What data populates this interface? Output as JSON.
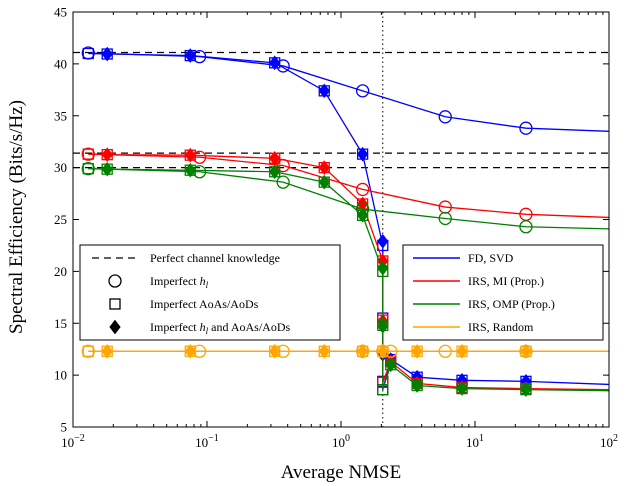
{
  "chart_data": {
    "type": "line",
    "title": "",
    "xlabel": "Average NMSE",
    "ylabel": "Spectral Efficiency (Bits/s/Hz)",
    "x_scale": "log",
    "xlim": [
      0.01,
      100
    ],
    "ylim": [
      5,
      45
    ],
    "x_ticks": [
      {
        "value": 0.01,
        "base": "10",
        "exp": "−2"
      },
      {
        "value": 0.1,
        "base": "10",
        "exp": "−1"
      },
      {
        "value": 1,
        "base": "10",
        "exp": "0"
      },
      {
        "value": 10,
        "base": "10",
        "exp": "1"
      },
      {
        "value": 100,
        "base": "10",
        "exp": "2"
      }
    ],
    "y_ticks": [
      "5",
      "10",
      "15",
      "20",
      "25",
      "30",
      "35",
      "40",
      "45"
    ],
    "vertical_line_x": 2.05,
    "grid": false,
    "colors": {
      "FD": "#0000ff",
      "MI": "#ff0000",
      "OMP": "#008000",
      "Random": "#ffa500",
      "perfect": "#000000"
    },
    "perfect_levels": [
      41.1,
      31.4,
      30.0
    ],
    "series": [
      {
        "name": "FD, SVD",
        "color": "#0000ff",
        "imperfect_hl": [
          [
            0.013,
            41.05
          ],
          [
            0.088,
            40.7
          ],
          [
            0.37,
            39.8
          ],
          [
            1.45,
            37.4
          ],
          [
            6.0,
            34.9
          ],
          [
            24,
            33.8
          ],
          [
            100,
            33.5
          ]
        ],
        "imperfect_aoa": [
          [
            0.013,
            41.0
          ],
          [
            0.018,
            40.95
          ],
          [
            0.075,
            40.8
          ],
          [
            0.32,
            40.1
          ],
          [
            0.75,
            37.4
          ],
          [
            1.45,
            31.3
          ],
          [
            2.05,
            22.5
          ],
          [
            2.05,
            15.5
          ],
          [
            2.05,
            9.4
          ],
          [
            2.05,
            8.6
          ],
          [
            2.35,
            11.5
          ],
          [
            3.7,
            9.8
          ],
          [
            8.0,
            9.5
          ],
          [
            24,
            9.4
          ],
          [
            100,
            9.1
          ]
        ],
        "imperfect_both": [
          [
            0.018,
            40.95
          ],
          [
            0.075,
            40.8
          ],
          [
            0.32,
            40.1
          ],
          [
            0.75,
            37.4
          ],
          [
            1.45,
            31.3
          ],
          [
            2.05,
            22.9
          ],
          [
            2.05,
            12.0
          ],
          [
            2.35,
            11.5
          ],
          [
            3.7,
            9.8
          ],
          [
            8.0,
            9.5
          ],
          [
            24,
            9.4
          ]
        ]
      },
      {
        "name": "IRS, MI (Prop.)",
        "color": "#ff0000",
        "imperfect_hl": [
          [
            0.013,
            31.3
          ],
          [
            0.088,
            31.0
          ],
          [
            0.37,
            30.2
          ],
          [
            1.45,
            27.9
          ],
          [
            6.0,
            26.2
          ],
          [
            24,
            25.5
          ],
          [
            100,
            25.2
          ]
        ],
        "imperfect_aoa": [
          [
            0.013,
            31.3
          ],
          [
            0.018,
            31.25
          ],
          [
            0.075,
            31.2
          ],
          [
            0.32,
            30.9
          ],
          [
            0.75,
            30.0
          ],
          [
            1.45,
            26.5
          ],
          [
            2.05,
            21.0
          ],
          [
            2.05,
            15.3
          ],
          [
            2.05,
            9.3
          ],
          [
            2.35,
            11.3
          ],
          [
            3.7,
            9.2
          ],
          [
            8.0,
            8.8
          ],
          [
            24,
            8.7
          ],
          [
            100,
            8.6
          ]
        ],
        "imperfect_both": [
          [
            0.018,
            31.25
          ],
          [
            0.075,
            31.2
          ],
          [
            0.32,
            30.9
          ],
          [
            0.75,
            30.0
          ],
          [
            1.45,
            26.5
          ],
          [
            2.05,
            21.0
          ],
          [
            2.05,
            15.2
          ],
          [
            2.35,
            11.3
          ],
          [
            3.7,
            9.2
          ],
          [
            8.0,
            8.8
          ],
          [
            24,
            8.7
          ]
        ]
      },
      {
        "name": "IRS, OMP (Prop.)",
        "color": "#008000",
        "imperfect_hl": [
          [
            0.013,
            29.9
          ],
          [
            0.088,
            29.6
          ],
          [
            0.37,
            28.6
          ],
          [
            1.45,
            26.0
          ],
          [
            6.0,
            25.1
          ],
          [
            24,
            24.3
          ],
          [
            100,
            24.1
          ]
        ],
        "imperfect_aoa": [
          [
            0.013,
            29.9
          ],
          [
            0.018,
            29.85
          ],
          [
            0.075,
            29.75
          ],
          [
            0.32,
            29.6
          ],
          [
            0.75,
            28.6
          ],
          [
            1.45,
            25.4
          ],
          [
            2.05,
            20.0
          ],
          [
            2.05,
            14.8
          ],
          [
            2.05,
            8.6
          ],
          [
            2.35,
            11.0
          ],
          [
            3.7,
            9.0
          ],
          [
            8.0,
            8.7
          ],
          [
            24,
            8.6
          ],
          [
            100,
            8.5
          ]
        ],
        "imperfect_both": [
          [
            0.018,
            29.85
          ],
          [
            0.075,
            29.75
          ],
          [
            0.32,
            29.6
          ],
          [
            0.75,
            28.6
          ],
          [
            1.45,
            25.4
          ],
          [
            2.05,
            20.3
          ],
          [
            2.05,
            14.7
          ],
          [
            2.35,
            11.0
          ],
          [
            3.7,
            9.0
          ],
          [
            8.0,
            8.7
          ],
          [
            24,
            8.6
          ]
        ]
      },
      {
        "name": "IRS, Random",
        "color": "#ffa500",
        "imperfect_hl": [
          [
            0.013,
            12.3
          ],
          [
            0.088,
            12.3
          ],
          [
            0.37,
            12.3
          ],
          [
            1.45,
            12.3
          ],
          [
            2.05,
            12.3
          ],
          [
            2.35,
            12.3
          ],
          [
            6.0,
            12.3
          ],
          [
            24,
            12.3
          ],
          [
            100,
            12.3
          ]
        ],
        "imperfect_aoa": [
          [
            0.013,
            12.3
          ],
          [
            0.018,
            12.3
          ],
          [
            0.075,
            12.3
          ],
          [
            0.32,
            12.3
          ],
          [
            0.75,
            12.3
          ],
          [
            1.45,
            12.3
          ],
          [
            2.05,
            12.3
          ],
          [
            3.7,
            12.3
          ],
          [
            8.0,
            12.3
          ],
          [
            24,
            12.3
          ],
          [
            100,
            12.3
          ]
        ],
        "imperfect_both": [
          [
            0.018,
            12.3
          ],
          [
            0.075,
            12.3
          ],
          [
            0.32,
            12.3
          ],
          [
            0.75,
            12.3
          ],
          [
            1.45,
            12.3
          ],
          [
            2.05,
            12.3
          ],
          [
            3.7,
            12.3
          ],
          [
            8.0,
            12.3
          ],
          [
            24,
            12.3
          ]
        ]
      }
    ],
    "legend_left": {
      "placement": "lower-left",
      "entries": [
        {
          "label": "Perfect channel knowledge",
          "sub": "",
          "rest": "",
          "marker": "dashed-line"
        },
        {
          "label": "Imperfect ",
          "sub": "l",
          "rest": "",
          "marker": "circle"
        },
        {
          "label": "Imperfect AoAs/AoDs",
          "sub": "",
          "rest": "",
          "marker": "square"
        },
        {
          "label": "Imperfect ",
          "sub": "l",
          "rest": " and AoAs/AoDs",
          "marker": "diamond"
        }
      ]
    },
    "legend_right": {
      "placement": "lower-right",
      "entries": [
        {
          "label": "FD, SVD",
          "color": "#0000ff"
        },
        {
          "label": "IRS, MI (Prop.)",
          "color": "#ff0000"
        },
        {
          "label": "IRS, OMP (Prop.)",
          "color": "#008000"
        },
        {
          "label": "IRS, Random",
          "color": "#ffa500"
        }
      ]
    }
  }
}
